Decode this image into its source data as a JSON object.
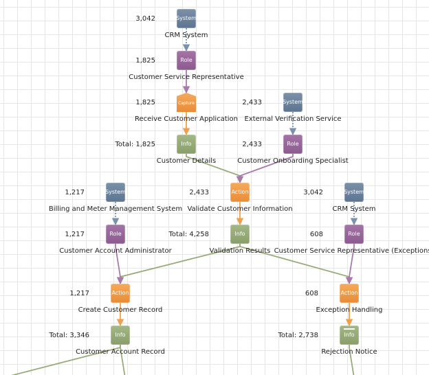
{
  "nodes": [
    {
      "id": "crm-system-1",
      "type": "System",
      "badge": "System",
      "count": "3,042",
      "label": "CRM System"
    },
    {
      "id": "csr-1",
      "type": "Role",
      "badge": "Role",
      "count": "1,825",
      "label": "Customer Service Representative"
    },
    {
      "id": "receive-app",
      "type": "Capture",
      "badge": "Capture",
      "count": "1,825",
      "label": "Receive Customer Application"
    },
    {
      "id": "customer-details",
      "type": "Info",
      "badge": "Info",
      "count": "Total: 1,825",
      "label": "Customer Details"
    },
    {
      "id": "ext-verification",
      "type": "System",
      "badge": "System",
      "count": "2,433",
      "label": "External Verification Service"
    },
    {
      "id": "onboarding-spec",
      "type": "Role",
      "badge": "Role",
      "count": "2,433",
      "label": "Customer Onboarding Specialist"
    },
    {
      "id": "validate-info",
      "type": "Action",
      "badge": "Action",
      "count": "2,433",
      "label": "Validate Customer Information"
    },
    {
      "id": "validation-results",
      "type": "Info",
      "badge": "Info",
      "count": "Total: 4,258",
      "label": "Validation Results"
    },
    {
      "id": "billing-system",
      "type": "System",
      "badge": "System",
      "count": "1,217",
      "label": "Billing and Meter Management System"
    },
    {
      "id": "account-admin",
      "type": "Role",
      "badge": "Role",
      "count": "1,217",
      "label": "Customer Account Administrator"
    },
    {
      "id": "crm-system-2",
      "type": "System",
      "badge": "System",
      "count": "3,042",
      "label": "CRM System"
    },
    {
      "id": "csr-exceptions",
      "type": "Role",
      "badge": "Role",
      "count": "608",
      "label": "Customer Service Representative (Exceptions)"
    },
    {
      "id": "create-record",
      "type": "Action",
      "badge": "Action",
      "count": "1,217",
      "label": "Create Customer Record"
    },
    {
      "id": "exception-handling",
      "type": "Action",
      "badge": "Action",
      "count": "608",
      "label": "Exception Handling"
    },
    {
      "id": "account-record",
      "type": "Info",
      "badge": "Info",
      "count": "Total: 3,346",
      "label": "Customer Account Record"
    },
    {
      "id": "rejection-notice",
      "type": "Info",
      "badge": "Info",
      "count": "Total: 2,738",
      "label": "Rejection Notice"
    }
  ],
  "edges": [
    {
      "from": "crm-system-1",
      "to": "csr-1",
      "kind": "system"
    },
    {
      "from": "csr-1",
      "to": "receive-app",
      "kind": "role"
    },
    {
      "from": "receive-app",
      "to": "customer-details",
      "kind": "action"
    },
    {
      "from": "ext-verification",
      "to": "onboarding-spec",
      "kind": "system"
    },
    {
      "from": "customer-details",
      "to": "validate-info",
      "kind": "info"
    },
    {
      "from": "onboarding-spec",
      "to": "validate-info",
      "kind": "role"
    },
    {
      "from": "validate-info",
      "to": "validation-results",
      "kind": "action"
    },
    {
      "from": "billing-system",
      "to": "account-admin",
      "kind": "system"
    },
    {
      "from": "crm-system-2",
      "to": "csr-exceptions",
      "kind": "system"
    },
    {
      "from": "validation-results",
      "to": "create-record",
      "kind": "info"
    },
    {
      "from": "validation-results",
      "to": "exception-handling",
      "kind": "info"
    },
    {
      "from": "account-admin",
      "to": "create-record",
      "kind": "role"
    },
    {
      "from": "csr-exceptions",
      "to": "exception-handling",
      "kind": "role"
    },
    {
      "from": "create-record",
      "to": "account-record",
      "kind": "action"
    },
    {
      "from": "exception-handling",
      "to": "rejection-notice",
      "kind": "action"
    },
    {
      "from": "account-record",
      "to": "offscreen-left",
      "kind": "info"
    },
    {
      "from": "account-record",
      "to": "offscreen-down-1",
      "kind": "info"
    },
    {
      "from": "rejection-notice",
      "to": "offscreen-down-2",
      "kind": "info"
    }
  ],
  "colors": {
    "system": "#7a92ad",
    "role": "#a77aaa",
    "action": "#f0a04b",
    "info": "#98ab78",
    "grid": "#e6e6e6"
  }
}
